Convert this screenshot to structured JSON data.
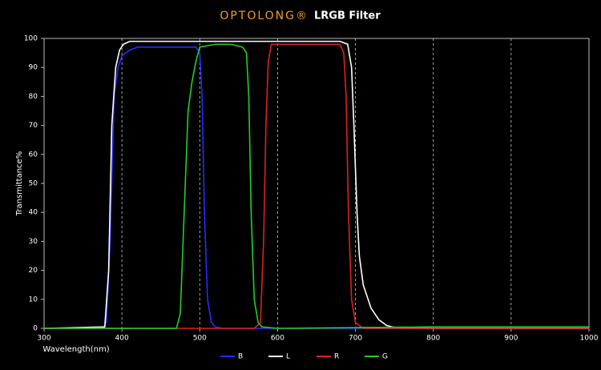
{
  "chart_data": {
    "type": "line",
    "brand": "OPTOLONG®",
    "title": "LRGB Filter",
    "xlabel": "Wavelength(nm)",
    "ylabel": "Transmittance%",
    "xlim": [
      300,
      1000
    ],
    "xticks": [
      300,
      400,
      500,
      600,
      700,
      800,
      900,
      1000
    ],
    "ylim": [
      0,
      100
    ],
    "yticks": [
      0,
      10,
      20,
      30,
      40,
      50,
      60,
      70,
      80,
      90,
      100
    ],
    "grid": "x",
    "series": [
      {
        "name": "B",
        "color": "#2a2aff",
        "x": [
          300,
          375,
          380,
          385,
          390,
          395,
          400,
          410,
          420,
          440,
          460,
          480,
          495,
          500,
          503,
          506,
          510,
          515,
          520,
          530,
          1000
        ],
        "values": [
          0,
          0,
          2,
          30,
          80,
          90,
          94,
          96,
          97,
          97,
          97,
          97,
          97,
          95,
          80,
          40,
          10,
          2,
          0.5,
          0,
          0
        ]
      },
      {
        "name": "L",
        "color": "#ffffff",
        "x": [
          300,
          378,
          383,
          387,
          392,
          397,
          402,
          410,
          450,
          500,
          550,
          600,
          650,
          680,
          690,
          695,
          698,
          702,
          705,
          710,
          720,
          730,
          740,
          750,
          800,
          1000
        ],
        "values": [
          0,
          0.5,
          20,
          70,
          90,
          96,
          98,
          99,
          99,
          99,
          99,
          99,
          99,
          99,
          98,
          90,
          70,
          40,
          25,
          15,
          7,
          3,
          1,
          0.3,
          0,
          0
        ]
      },
      {
        "name": "R",
        "color": "#e02020",
        "x": [
          300,
          570,
          578,
          582,
          585,
          588,
          592,
          620,
          660,
          680,
          685,
          688,
          691,
          695,
          700,
          710,
          1000
        ],
        "values": [
          0,
          0,
          2,
          30,
          70,
          92,
          98,
          98,
          98,
          98,
          95,
          80,
          40,
          10,
          2,
          0,
          0
        ]
      },
      {
        "name": "G",
        "color": "#22d022",
        "x": [
          300,
          470,
          475,
          480,
          485,
          490,
          495,
          500,
          520,
          540,
          555,
          560,
          563,
          566,
          570,
          575,
          580,
          600,
          800,
          900,
          1000
        ],
        "values": [
          0,
          0,
          5,
          40,
          75,
          85,
          92,
          97,
          98,
          98,
          97,
          95,
          80,
          40,
          10,
          2,
          0.5,
          0,
          0.5,
          0.5,
          0.5
        ]
      }
    ]
  }
}
